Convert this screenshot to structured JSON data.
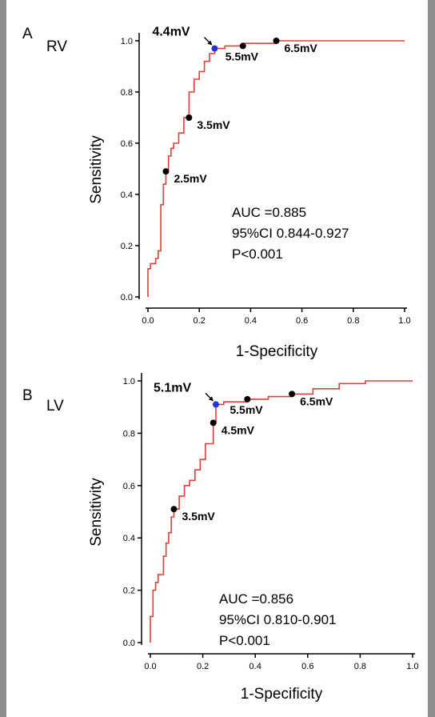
{
  "chart_data": [
    {
      "type": "line",
      "panel_letter": "A",
      "panel_label": "RV",
      "xlabel": "1-Specificity",
      "ylabel": "Sensitivity",
      "xlim": [
        0,
        1
      ],
      "ylim": [
        0,
        1
      ],
      "xticks": [
        "0.0",
        "0.2",
        "0.4",
        "0.6",
        "0.8",
        "1.0"
      ],
      "yticks": [
        "0.0",
        "0.2",
        "0.4",
        "0.6",
        "0.8",
        "1.0"
      ],
      "grid": false,
      "line_color": "#e0403a",
      "series": [
        {
          "x": [
            0,
            0,
            0.01,
            0.01,
            0.03,
            0.03,
            0.04,
            0.04,
            0.05,
            0.05,
            0.06,
            0.06,
            0.07,
            0.07,
            0.08,
            0.08,
            0.09,
            0.09,
            0.1,
            0.1,
            0.12,
            0.12,
            0.14,
            0.14,
            0.16,
            0.16,
            0.18,
            0.18,
            0.2,
            0.2,
            0.22,
            0.22,
            0.24,
            0.24,
            0.26,
            0.26,
            0.3,
            0.3,
            0.37,
            0.37,
            0.5,
            0.5,
            1.0
          ],
          "y": [
            0,
            0.11,
            0.11,
            0.13,
            0.13,
            0.15,
            0.15,
            0.18,
            0.18,
            0.36,
            0.36,
            0.44,
            0.44,
            0.49,
            0.49,
            0.55,
            0.55,
            0.58,
            0.58,
            0.6,
            0.6,
            0.64,
            0.64,
            0.7,
            0.7,
            0.8,
            0.8,
            0.85,
            0.85,
            0.88,
            0.88,
            0.92,
            0.92,
            0.95,
            0.95,
            0.97,
            0.97,
            0.98,
            0.98,
            0.99,
            0.99,
            1.0,
            1.0
          ]
        }
      ],
      "cutoffs": [
        {
          "label": "2.5mV",
          "x": 0.07,
          "y": 0.49,
          "color": "#000000",
          "arrow": false,
          "label_pos": "below-right"
        },
        {
          "label": "3.5mV",
          "x": 0.16,
          "y": 0.7,
          "color": "#000000",
          "arrow": false,
          "label_pos": "below-right"
        },
        {
          "label": "4.4mV",
          "x": 0.26,
          "y": 0.97,
          "color": "#2233dd",
          "arrow": true,
          "label_pos": "above-left"
        },
        {
          "label": "5.5mV",
          "x": 0.37,
          "y": 0.98,
          "color": "#000000",
          "arrow": false,
          "label_pos": "below"
        },
        {
          "label": "6.5mV",
          "x": 0.5,
          "y": 1.0,
          "color": "#000000",
          "arrow": false,
          "label_pos": "below-right"
        }
      ],
      "annotation": [
        "AUC =0.885",
        "95%CI 0.844-0.927",
        "P<0.001"
      ]
    },
    {
      "type": "line",
      "panel_letter": "B",
      "panel_label": "LV",
      "xlabel": "1-Specificity",
      "ylabel": "Sensitivity",
      "xlim": [
        0,
        1
      ],
      "ylim": [
        0,
        1
      ],
      "xticks": [
        "0.0",
        "0.2",
        "0.4",
        "0.6",
        "0.8",
        "1.0"
      ],
      "yticks": [
        "0.0",
        "0.2",
        "0.4",
        "0.6",
        "0.8",
        "1.0"
      ],
      "grid": false,
      "line_color": "#e0403a",
      "series": [
        {
          "x": [
            0,
            0,
            0.01,
            0.01,
            0.02,
            0.02,
            0.03,
            0.03,
            0.05,
            0.05,
            0.06,
            0.06,
            0.07,
            0.07,
            0.08,
            0.08,
            0.09,
            0.09,
            0.11,
            0.11,
            0.13,
            0.13,
            0.15,
            0.15,
            0.17,
            0.17,
            0.19,
            0.19,
            0.21,
            0.21,
            0.24,
            0.24,
            0.25,
            0.25,
            0.28,
            0.28,
            0.37,
            0.37,
            0.45,
            0.45,
            0.54,
            0.54,
            0.62,
            0.62,
            0.72,
            0.72,
            0.82,
            0.82,
            1.0
          ],
          "y": [
            0,
            0.1,
            0.1,
            0.2,
            0.2,
            0.23,
            0.23,
            0.26,
            0.26,
            0.33,
            0.33,
            0.38,
            0.38,
            0.42,
            0.42,
            0.48,
            0.48,
            0.51,
            0.51,
            0.56,
            0.56,
            0.6,
            0.6,
            0.62,
            0.62,
            0.66,
            0.66,
            0.7,
            0.7,
            0.76,
            0.76,
            0.84,
            0.84,
            0.91,
            0.91,
            0.92,
            0.92,
            0.93,
            0.93,
            0.94,
            0.94,
            0.95,
            0.95,
            0.97,
            0.97,
            0.99,
            0.99,
            1.0,
            1.0
          ]
        }
      ],
      "cutoffs": [
        {
          "label": "3.5mV",
          "x": 0.09,
          "y": 0.51,
          "color": "#000000",
          "arrow": false,
          "label_pos": "below-right"
        },
        {
          "label": "4.5mV",
          "x": 0.24,
          "y": 0.84,
          "color": "#000000",
          "arrow": false,
          "label_pos": "below-right"
        },
        {
          "label": "5.1mV",
          "x": 0.25,
          "y": 0.91,
          "color": "#2233dd",
          "arrow": true,
          "label_pos": "above-left"
        },
        {
          "label": "5.5mV",
          "x": 0.37,
          "y": 0.93,
          "color": "#000000",
          "arrow": false,
          "label_pos": "below"
        },
        {
          "label": "6.5mV",
          "x": 0.54,
          "y": 0.95,
          "color": "#000000",
          "arrow": false,
          "label_pos": "below-right"
        }
      ],
      "annotation": [
        "AUC =0.856",
        "95%CI 0.810-0.901",
        "P<0.001"
      ]
    }
  ]
}
